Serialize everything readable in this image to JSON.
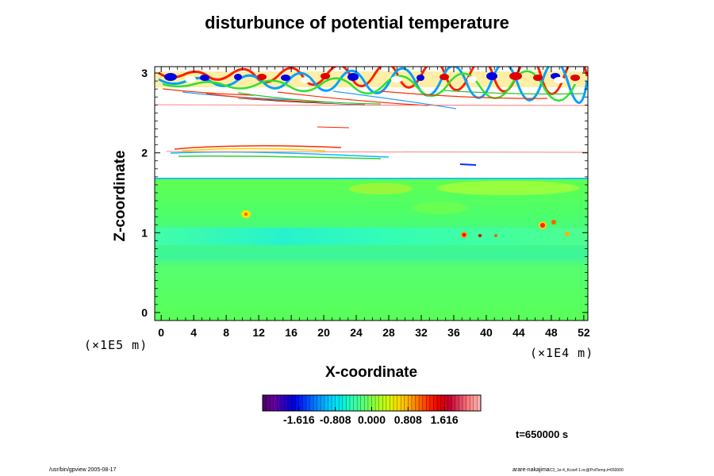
{
  "chart_data": {
    "type": "heatmap",
    "title": "disturbunce of potential temperature",
    "xlabel": "X-coordinate",
    "ylabel": "Z-coordinate",
    "x_ticks": [
      "0",
      "4",
      "8",
      "12",
      "16",
      "20",
      "24",
      "28",
      "32",
      "36",
      "40",
      "44",
      "48",
      "52"
    ],
    "y_ticks": [
      "0",
      "1",
      "2",
      "3"
    ],
    "x_range": [
      -0.8,
      52.5
    ],
    "y_range": [
      -0.1,
      3.08
    ],
    "x_multiplier": "(×1E4 m)",
    "y_multiplier": "(×1E5 m)",
    "colorbar": {
      "tick_labels": [
        "-1.616",
        "-0.808",
        "0.000",
        "0.808",
        "1.616"
      ],
      "tick_values": [
        -1.616,
        -0.808,
        0.0,
        0.808,
        1.616
      ],
      "range": [
        -2.424,
        2.424
      ],
      "colors": [
        "#4b0070",
        "#6a00a0",
        "#2a00c0",
        "#0000e0",
        "#0030ff",
        "#0070ff",
        "#00a8ff",
        "#00d8ff",
        "#00f0e0",
        "#30ffb0",
        "#50ff80",
        "#80ff40",
        "#b0ff20",
        "#e0f000",
        "#ffd000",
        "#ffa000",
        "#ff6000",
        "#ff2000",
        "#e00000",
        "#c80030",
        "#e04060",
        "#ff8080",
        "#ffb0b0"
      ]
    },
    "time": "t=650000 s"
  },
  "footer": {
    "left": "/usr/bin/gpview 2005-08-17",
    "right_main": "arare-nakajima",
    "right_sub": "C3_1e-4_Kcoef-1.nc@PotTemp,t=650000"
  }
}
